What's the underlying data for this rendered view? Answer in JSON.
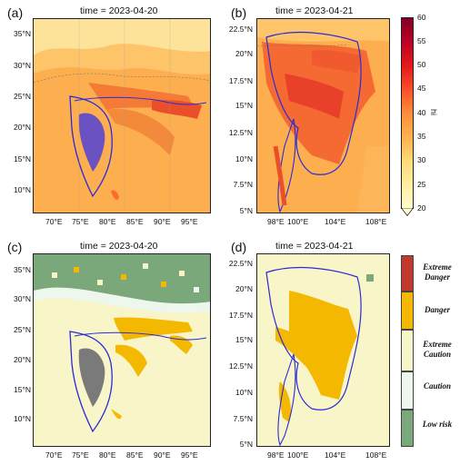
{
  "panels": {
    "a": {
      "label": "(a)",
      "title": "time = 2023-04-20",
      "lon_ticks": [
        "70°E",
        "75°E",
        "80°E",
        "85°E",
        "90°E",
        "95°E"
      ],
      "lat_ticks": [
        "35°N",
        "30°N",
        "25°N",
        "20°N",
        "15°N",
        "10°N"
      ]
    },
    "b": {
      "label": "(b)",
      "title": "time = 2023-04-21",
      "lon_ticks": [
        "98°E",
        "100°E",
        "104°E",
        "108°E"
      ],
      "lat_ticks": [
        "22.5°N",
        "20°N",
        "17.5°N",
        "15°N",
        "12.5°N",
        "10°N",
        "7.5°N",
        "5°N"
      ]
    },
    "c": {
      "label": "(c)",
      "title": "time = 2023-04-20",
      "lon_ticks": [
        "70°E",
        "75°E",
        "80°E",
        "85°E",
        "90°E",
        "95°E"
      ],
      "lat_ticks": [
        "35°N",
        "30°N",
        "25°N",
        "20°N",
        "15°N",
        "10°N"
      ]
    },
    "d": {
      "label": "(d)",
      "title": "time = 2023-04-21",
      "lon_ticks": [
        "98°E",
        "100°E",
        "104°E",
        "108°E"
      ],
      "lat_ticks": [
        "22.5°N",
        "20°N",
        "17.5°N",
        "15°N",
        "12.5°N",
        "10°N",
        "7.5°N",
        "5°N"
      ]
    }
  },
  "colorbar": {
    "label": "hi",
    "ticks": [
      "60",
      "55",
      "50",
      "45",
      "40",
      "35",
      "30",
      "25",
      "20"
    ],
    "colors": [
      "#ffffcc",
      "#ffeda0",
      "#fed976",
      "#feb24c",
      "#fd8d3c",
      "#fc4e2a",
      "#e31a1c",
      "#bd0026",
      "#800026"
    ]
  },
  "risk_legend": [
    {
      "label": "Extreme Danger",
      "color": "#c0392b"
    },
    {
      "label": "Danger",
      "color": "#f5b800"
    },
    {
      "label": "Extreme Caution",
      "color": "#f8f5c8"
    },
    {
      "label": "Caution",
      "color": "#eef7ee"
    },
    {
      "label": "Low risk",
      "color": "#7ba87b"
    }
  ]
}
